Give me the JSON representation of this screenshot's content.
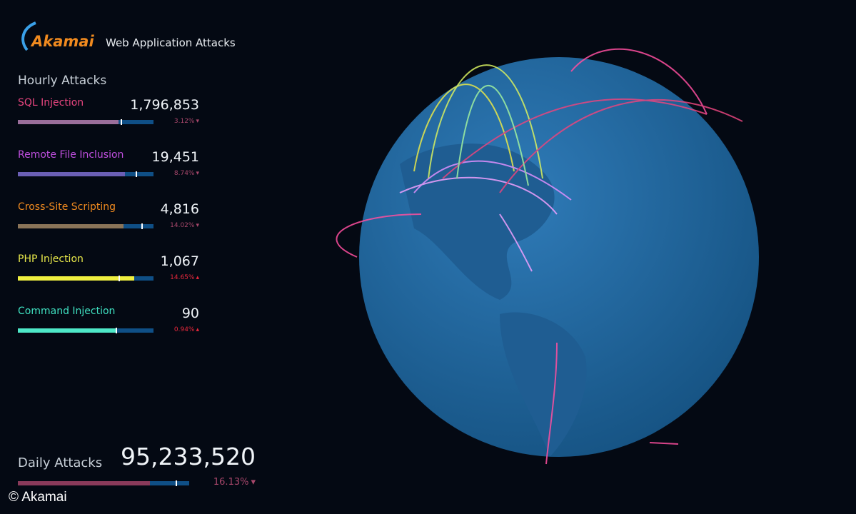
{
  "header": {
    "logo": "Akamai",
    "title": "Web Application Attacks"
  },
  "hourly": {
    "title": "Hourly Attacks",
    "items": [
      {
        "name": "SQL Injection",
        "value": "1,796,853",
        "change": "3.12%",
        "arrow": "▾",
        "color": "#e8457f",
        "bar_color": "#9a6e9a",
        "change_color": "#a8476b",
        "bar": 74,
        "marker": 76
      },
      {
        "name": "Remote File Inclusion",
        "value": "19,451",
        "change": "8.74%",
        "arrow": "▾",
        "color": "#c04fe0",
        "bar_color": "#6b5fb5",
        "change_color": "#a8476b",
        "bar": 79,
        "marker": 87
      },
      {
        "name": "Cross-Site Scripting",
        "value": "4,816",
        "change": "14.02%",
        "arrow": "▾",
        "color": "#f08a1f",
        "bar_color": "#8a7458",
        "change_color": "#a8476b",
        "bar": 78,
        "marker": 91
      },
      {
        "name": "PHP Injection",
        "value": "1,067",
        "change": "14.65%",
        "arrow": "▴",
        "color": "#e8e84a",
        "bar_color": "#f0f040",
        "change_color": "#e8283c",
        "bar": 86,
        "marker": 74
      },
      {
        "name": "Command Injection",
        "value": "90",
        "change": "0.94%",
        "arrow": "▴",
        "color": "#3fe0c0",
        "bar_color": "#4ee8c8",
        "change_color": "#e8283c",
        "bar": 72,
        "marker": 72
      }
    ]
  },
  "daily": {
    "title": "Daily Attacks",
    "value": "95,233,520",
    "change": "16.13%",
    "arrow": "▾",
    "bar_color": "#8a3a5a",
    "change_color": "#a8476b",
    "bar": 77,
    "marker": 92
  },
  "footer": {
    "copyright": "© Akamai"
  }
}
